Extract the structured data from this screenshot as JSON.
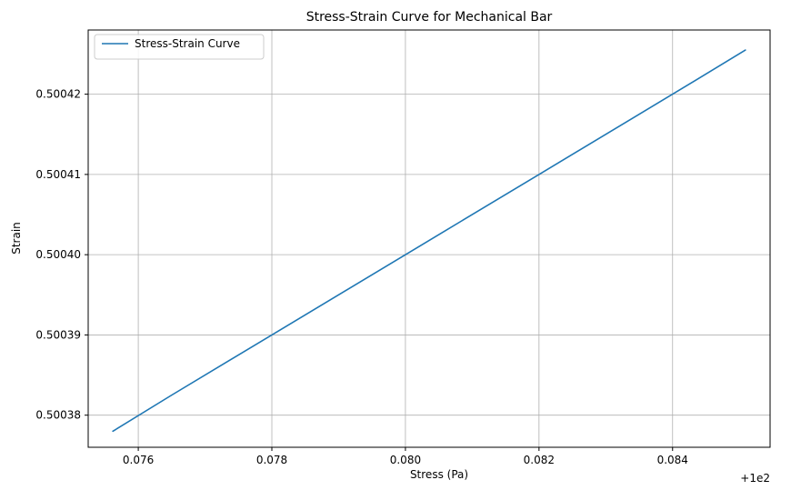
{
  "chart_data": {
    "type": "line",
    "title": "Stress-Strain Curve for Mechanical Bar",
    "xlabel": "Stress (Pa)",
    "ylabel": "Strain",
    "x_offset_label": "+1e2",
    "xlim": [
      0.07525,
      0.08546
    ],
    "ylim": [
      0.500376,
      0.500428
    ],
    "x_ticks": [
      0.076,
      0.078,
      0.08,
      0.082,
      0.084
    ],
    "x_tick_labels": [
      "0.076",
      "0.078",
      "0.080",
      "0.082",
      "0.084"
    ],
    "y_ticks": [
      0.50038,
      0.50039,
      0.5004,
      0.50041,
      0.50042
    ],
    "y_tick_labels": [
      "0.50038",
      "0.50039",
      "0.50040",
      "0.50041",
      "0.50042"
    ],
    "grid": true,
    "legend_position": "top-left",
    "series": [
      {
        "name": "Stress-Strain Curve",
        "color": "#1f77b4",
        "x": [
          0.07562,
          0.0765,
          0.078,
          0.08,
          0.082,
          0.084,
          0.08509
        ],
        "y": [
          0.500378,
          0.5003825,
          0.50039,
          0.5004,
          0.50041,
          0.50042,
          0.5004255
        ]
      }
    ]
  }
}
